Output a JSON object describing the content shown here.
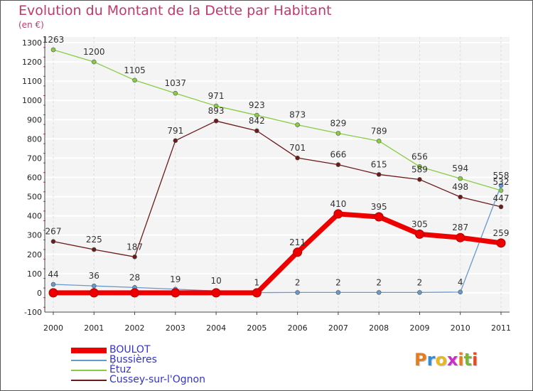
{
  "title": "Evolution du Montant de la Dette par Habitant",
  "subtitle": "(en €)",
  "logo": {
    "letters": [
      "P",
      "r",
      "o",
      "x",
      "i",
      "t",
      "i"
    ],
    "colors": [
      "#e87b1c",
      "#2f8fd6",
      "#e8b91c",
      "#c82fc8",
      "#e87b1c",
      "#7ab82e",
      "#e84a1c"
    ]
  },
  "chart_data": {
    "type": "line",
    "title": "Evolution du Montant de la Dette par Habitant",
    "ylabel": "(en €)",
    "xlabel": "",
    "x": [
      "2000",
      "2001",
      "2002",
      "2003",
      "2004",
      "2005",
      "2006",
      "2007",
      "2008",
      "2009",
      "2010",
      "2011"
    ],
    "ylim": [
      -100,
      1300
    ],
    "yticks": [
      "-100",
      "0",
      "100",
      "200",
      "300",
      "400",
      "500",
      "600",
      "700",
      "800",
      "900",
      "1000",
      "1100",
      "1200",
      "1300"
    ],
    "grid": true,
    "legend_position": "bottom-left",
    "series": [
      {
        "name": "BOULOT",
        "color": "#ee0000",
        "values": [
          0,
          0,
          0,
          0,
          0,
          0,
          211,
          410,
          395,
          305,
          287,
          259
        ],
        "labels": [
          "",
          "",
          "",
          "",
          "",
          "",
          "211",
          "410",
          "395",
          "305",
          "287",
          "259"
        ]
      },
      {
        "name": "Bussières",
        "color": "#6699cc",
        "values": [
          44,
          36,
          28,
          19,
          10,
          1,
          2,
          2,
          2,
          2,
          4,
          558
        ],
        "labels": [
          "44",
          "36",
          "28",
          "19",
          "10",
          "1",
          "2",
          "2",
          "2",
          "2",
          "4",
          "558"
        ]
      },
      {
        "name": "Étuz",
        "color": "#88cc44",
        "values": [
          1263,
          1200,
          1105,
          1037,
          971,
          923,
          873,
          829,
          789,
          656,
          594,
          532
        ],
        "labels": [
          "1263",
          "1200",
          "1105",
          "1037",
          "971",
          "923",
          "873",
          "829",
          "789",
          "656",
          "594",
          "532"
        ]
      },
      {
        "name": "Cussey-sur-l'Ognon",
        "color": "#6b1a1a",
        "values": [
          267,
          225,
          187,
          791,
          893,
          842,
          701,
          666,
          615,
          589,
          498,
          447
        ],
        "labels": [
          "267",
          "225",
          "187",
          "791",
          "893",
          "842",
          "701",
          "666",
          "615",
          "589",
          "498",
          "447"
        ]
      }
    ]
  }
}
